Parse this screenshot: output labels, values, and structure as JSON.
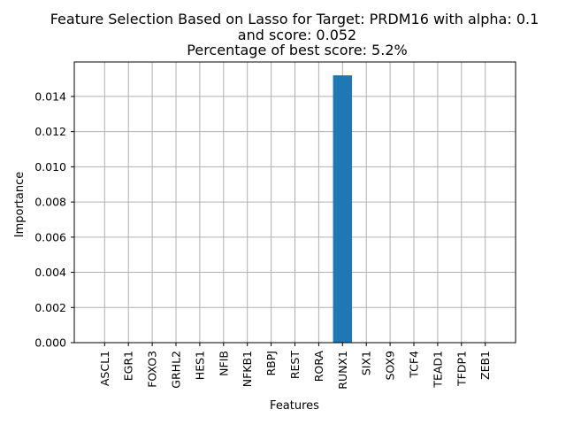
{
  "chart_data": {
    "type": "bar",
    "title_lines": [
      "Feature Selection Based on Lasso for Target: PRDM16 with alpha: 0.1",
      "and score: 0.052",
      "Percentage of best score: 5.2%"
    ],
    "xlabel": "Features",
    "ylabel": "Importance",
    "categories": [
      "ASCL1",
      "EGR1",
      "FOXO3",
      "GRHL2",
      "HES1",
      "NFIB",
      "NFKB1",
      "RBPJ",
      "REST",
      "RORA",
      "RUNX1",
      "SIX1",
      "SOX9",
      "TCF4",
      "TEAD1",
      "TFDP1",
      "ZEB1"
    ],
    "values": [
      0,
      0,
      0,
      0,
      0,
      0,
      0,
      0,
      0,
      0,
      0.0152,
      0,
      0,
      0,
      0,
      0,
      0
    ],
    "yticks": [
      "0.000",
      "0.002",
      "0.004",
      "0.006",
      "0.008",
      "0.010",
      "0.012",
      "0.014"
    ],
    "ylim": [
      0,
      0.01596
    ],
    "grid": true,
    "bar_color": "#1f77b4",
    "grid_color": "#b0b0b0"
  }
}
